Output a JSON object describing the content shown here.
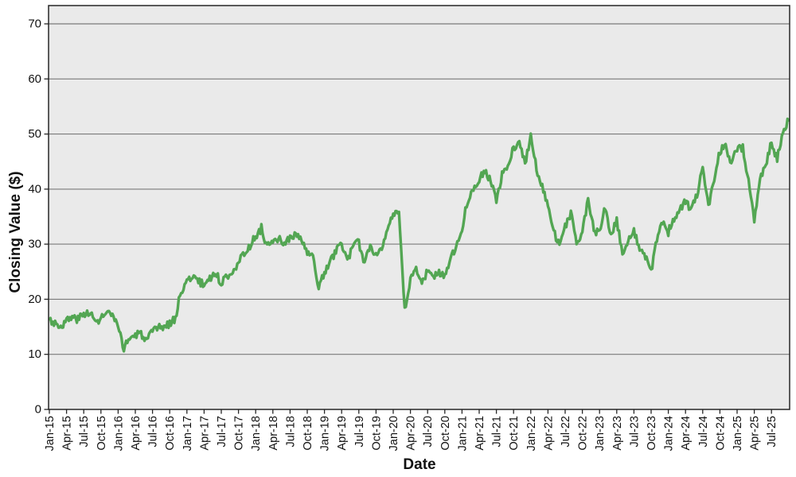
{
  "page": {
    "background": "#ffffff"
  },
  "chart_data": {
    "type": "line",
    "title": "",
    "xlabel": "Date",
    "ylabel": "Closing Value ($)",
    "series_name": "Closing Value ($)",
    "legend": "none",
    "grid": "horizontal",
    "plot_bg": "#eaeaea",
    "grid_color": "#7a7a7a",
    "border_color": "#262626",
    "line_color": "#53a653",
    "tick_text_color": "#111111",
    "ylim": [
      0,
      73.3
    ],
    "y_ticks": [
      0,
      10,
      20,
      30,
      40,
      50,
      60,
      70
    ],
    "x_tick_labels": [
      "Jan-15",
      "Apr-15",
      "Jul-15",
      "Oct-15",
      "Jan-16",
      "Apr-16",
      "Jul-16",
      "Oct-16",
      "Jan-17",
      "Apr-17",
      "Jul-17",
      "Oct-17",
      "Jan-18",
      "Apr-18",
      "Jul-18",
      "Oct-18",
      "Jan-19",
      "Apr-19",
      "Jul-19",
      "Oct-19",
      "Jan-20",
      "Apr-20",
      "Jul-20",
      "Oct-20",
      "Jan-21",
      "Apr-21",
      "Jul-21",
      "Oct-21",
      "Jan-22",
      "Apr-22",
      "Jul-22",
      "Oct-22",
      "Jan-23",
      "Apr-23",
      "Jul-23",
      "Oct-23",
      "Jan-24",
      "Apr-24",
      "Jul-24",
      "Oct-24",
      "Jan-25",
      "Apr-25",
      "Jul-25"
    ],
    "x_frequency": "monthly",
    "x_start": "Jan-2015",
    "x_end": "Oct-2025",
    "months": [
      "Jan-15",
      "Feb-15",
      "Mar-15",
      "Apr-15",
      "May-15",
      "Jun-15",
      "Jul-15",
      "Aug-15",
      "Sep-15",
      "Oct-15",
      "Nov-15",
      "Dec-15",
      "Jan-16",
      "Feb-16",
      "Mar-16",
      "Apr-16",
      "May-16",
      "Jun-16",
      "Jul-16",
      "Aug-16",
      "Sep-16",
      "Oct-16",
      "Nov-16",
      "Dec-16",
      "Jan-17",
      "Feb-17",
      "Mar-17",
      "Apr-17",
      "May-17",
      "Jun-17",
      "Jul-17",
      "Aug-17",
      "Sep-17",
      "Oct-17",
      "Nov-17",
      "Dec-17",
      "Jan-18",
      "Feb-18",
      "Mar-18",
      "Apr-18",
      "May-18",
      "Jun-18",
      "Jul-18",
      "Aug-18",
      "Sep-18",
      "Oct-18",
      "Nov-18",
      "Dec-18",
      "Jan-19",
      "Feb-19",
      "Mar-19",
      "Apr-19",
      "May-19",
      "Jun-19",
      "Jul-19",
      "Aug-19",
      "Sep-19",
      "Oct-19",
      "Nov-19",
      "Dec-19",
      "Jan-20",
      "Feb-20",
      "Mar-20",
      "Apr-20",
      "May-20",
      "Jun-20",
      "Jul-20",
      "Aug-20",
      "Sep-20",
      "Oct-20",
      "Nov-20",
      "Dec-20",
      "Jan-21",
      "Feb-21",
      "Mar-21",
      "Apr-21",
      "May-21",
      "Jun-21",
      "Jul-21",
      "Aug-21",
      "Sep-21",
      "Oct-21",
      "Nov-21",
      "Dec-21",
      "Jan-22",
      "Feb-22",
      "Mar-22",
      "Apr-22",
      "May-22",
      "Jun-22",
      "Jul-22",
      "Aug-22",
      "Sep-22",
      "Oct-22",
      "Nov-22",
      "Dec-22",
      "Jan-23",
      "Feb-23",
      "Mar-23",
      "Apr-23",
      "May-23",
      "Jun-23",
      "Jul-23",
      "Aug-23",
      "Sep-23",
      "Oct-23",
      "Nov-23",
      "Dec-23",
      "Jan-24",
      "Feb-24",
      "Mar-24",
      "Apr-24",
      "May-24",
      "Jun-24",
      "Jul-24",
      "Aug-24",
      "Sep-24",
      "Oct-24",
      "Nov-24",
      "Dec-24",
      "Jan-25",
      "Feb-25",
      "Mar-25",
      "Apr-25",
      "May-25",
      "Jun-25",
      "Jul-25",
      "Aug-25",
      "Sep-25",
      "Oct-25"
    ],
    "values": [
      16.4,
      15.7,
      15.1,
      16.1,
      16.7,
      16.4,
      17.2,
      17.9,
      15.7,
      16.6,
      17.5,
      17.1,
      14.6,
      11.2,
      13.0,
      13.4,
      13.8,
      12.4,
      14.0,
      14.8,
      15.0,
      15.6,
      16.6,
      21.6,
      23.1,
      24.4,
      23.2,
      22.6,
      24.0,
      24.6,
      23.0,
      24.2,
      25.3,
      26.7,
      28.2,
      29.8,
      31.3,
      32.9,
      29.7,
      30.1,
      30.9,
      30.2,
      31.1,
      31.6,
      30.7,
      28.5,
      27.4,
      22.3,
      24.6,
      26.9,
      28.7,
      30.2,
      27.2,
      29.5,
      30.3,
      26.6,
      29.8,
      28.0,
      29.5,
      33.2,
      35.2,
      35.4,
      17.8,
      23.5,
      26.0,
      22.5,
      25.5,
      24.0,
      25.0,
      24.0,
      28.0,
      29.4,
      33.0,
      38.0,
      40.2,
      42.0,
      43.4,
      41.5,
      37.8,
      42.5,
      44.0,
      47.6,
      48.4,
      44.8,
      49.5,
      43.5,
      40.8,
      37.0,
      32.2,
      30.0,
      33.2,
      35.5,
      30.4,
      32.0,
      38.4,
      32.5,
      32.0,
      36.8,
      31.4,
      34.2,
      28.6,
      30.8,
      32.4,
      28.8,
      27.6,
      25.0,
      31.2,
      34.2,
      32.2,
      34.6,
      36.4,
      37.6,
      36.2,
      38.8,
      43.8,
      36.9,
      42.0,
      47.0,
      47.6,
      44.6,
      47.4,
      47.6,
      41.5,
      34.2,
      41.8,
      44.6,
      48.6,
      45.3,
      50.5,
      52.5
    ]
  }
}
